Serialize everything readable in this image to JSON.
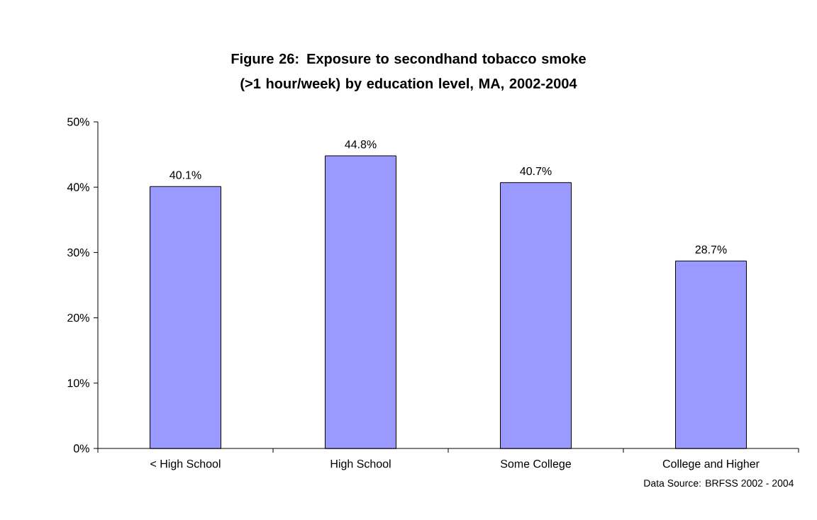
{
  "chart_data": {
    "type": "bar",
    "title": "Figure 26:  Exposure to secondhand tobacco smoke (>1 hour/week) by education level, MA, 2002-2004",
    "categories": [
      "< High School",
      "High School",
      "Some College",
      "College and Higher"
    ],
    "values": [
      40.1,
      44.8,
      40.7,
      28.7
    ],
    "value_labels": [
      "40.1%",
      "44.8%",
      "40.7%",
      "28.7%"
    ],
    "color": "#9999ff",
    "ylim": [
      0,
      50
    ],
    "yticks": [
      {
        "value": 0,
        "label": "0%"
      },
      {
        "value": 10,
        "label": "10%"
      },
      {
        "value": 20,
        "label": "20%"
      },
      {
        "value": 30,
        "label": "30%"
      },
      {
        "value": 40,
        "label": "40%"
      },
      {
        "value": 50,
        "label": "50%"
      }
    ],
    "annotations": [
      "Data Source: BRFSS 2002 - 2004"
    ]
  }
}
